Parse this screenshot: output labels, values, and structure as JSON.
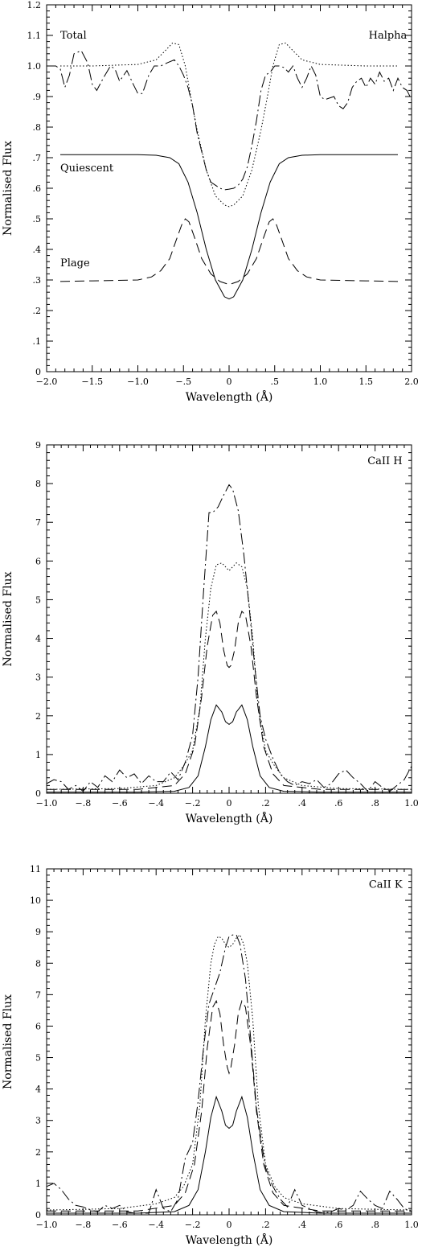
{
  "chart_data": [
    {
      "id": "halpha",
      "type": "line",
      "xlabel": "Wavelength (Å)",
      "ylabel": "Normalised Flux",
      "xlim": [
        -2.0,
        2.0
      ],
      "ylim": [
        0,
        1.2
      ],
      "xticks": [
        -2.0,
        -1.5,
        -1.0,
        -0.5,
        0,
        0.5,
        1.0,
        1.5,
        2.0
      ],
      "xtick_labels": [
        "−2.0",
        "−1.5",
        "−1.0",
        "−.5",
        "0",
        ".5",
        "1.0",
        "1.5",
        "2.0"
      ],
      "yticks": [
        0,
        0.1,
        0.2,
        0.3,
        0.4,
        0.5,
        0.6,
        0.7,
        0.8,
        0.9,
        1.0,
        1.1,
        1.2
      ],
      "ytick_labels": [
        "0",
        ".1",
        ".2",
        ".3",
        ".4",
        ".5",
        ".6",
        ".7",
        ".8",
        ".9",
        "1.0",
        "1.1",
        "1.2"
      ],
      "annotations": [
        {
          "text": "Total",
          "x": -1.85,
          "y": 1.09
        },
        {
          "text": "Halpha",
          "x": 1.95,
          "y": 1.09,
          "anchor": "end"
        },
        {
          "text": "Quiescent",
          "x": -1.85,
          "y": 0.655
        },
        {
          "text": "Plage",
          "x": -1.85,
          "y": 0.345
        }
      ],
      "series": [
        {
          "style": "solid",
          "x": [
            -1.85,
            -1.0,
            -0.8,
            -0.65,
            -0.55,
            -0.45,
            -0.35,
            -0.25,
            -0.15,
            -0.05,
            0,
            0.05,
            0.15,
            0.25,
            0.35,
            0.45,
            0.55,
            0.65,
            0.8,
            1.0,
            1.85
          ],
          "y": [
            0.71,
            0.71,
            0.708,
            0.7,
            0.68,
            0.62,
            0.52,
            0.4,
            0.3,
            0.245,
            0.238,
            0.245,
            0.3,
            0.4,
            0.52,
            0.62,
            0.68,
            0.7,
            0.708,
            0.71,
            0.71
          ]
        },
        {
          "style": "dashed",
          "x": [
            -1.85,
            -1.5,
            -1.0,
            -0.85,
            -0.75,
            -0.65,
            -0.58,
            -0.52,
            -0.48,
            -0.44,
            -0.38,
            -0.3,
            -0.2,
            -0.1,
            0,
            0.1,
            0.2,
            0.3,
            0.38,
            0.44,
            0.48,
            0.52,
            0.58,
            0.65,
            0.75,
            0.85,
            1.0,
            1.5,
            1.85
          ],
          "y": [
            0.295,
            0.297,
            0.3,
            0.31,
            0.33,
            0.37,
            0.43,
            0.48,
            0.5,
            0.49,
            0.44,
            0.37,
            0.32,
            0.295,
            0.285,
            0.295,
            0.32,
            0.37,
            0.44,
            0.49,
            0.5,
            0.48,
            0.43,
            0.37,
            0.33,
            0.31,
            0.3,
            0.297,
            0.295
          ]
        },
        {
          "style": "dotted",
          "x": [
            -1.85,
            -1.5,
            -1.0,
            -0.8,
            -0.7,
            -0.62,
            -0.55,
            -0.48,
            -0.42,
            -0.35,
            -0.25,
            -0.15,
            -0.05,
            0,
            0.05,
            0.15,
            0.25,
            0.35,
            0.42,
            0.48,
            0.55,
            0.62,
            0.7,
            0.8,
            1.0,
            1.5,
            1.85
          ],
          "y": [
            1.0,
            1.0,
            1.005,
            1.02,
            1.05,
            1.075,
            1.07,
            1.0,
            0.9,
            0.79,
            0.66,
            0.575,
            0.545,
            0.54,
            0.545,
            0.575,
            0.66,
            0.79,
            0.9,
            1.0,
            1.07,
            1.075,
            1.05,
            1.02,
            1.005,
            1.0,
            1.0
          ]
        },
        {
          "style": "dashdot",
          "x": [
            -2.0,
            -1.9,
            -1.85,
            -1.8,
            -1.75,
            -1.7,
            -1.62,
            -1.55,
            -1.5,
            -1.45,
            -1.38,
            -1.3,
            -1.25,
            -1.2,
            -1.12,
            -1.05,
            -1.0,
            -0.95,
            -0.88,
            -0.82,
            -0.75,
            -0.68,
            -0.6,
            -0.55,
            -0.5,
            -0.45,
            -0.4,
            -0.35,
            -0.3,
            -0.25,
            -0.2,
            -0.15,
            -0.1,
            -0.05,
            0,
            0.05,
            0.1,
            0.15,
            0.2,
            0.25,
            0.3,
            0.35,
            0.4,
            0.45,
            0.5,
            0.55,
            0.6,
            0.65,
            0.7,
            0.75,
            0.8,
            0.85,
            0.9,
            0.95,
            1.0,
            1.05,
            1.1,
            1.15,
            1.2,
            1.25,
            1.3,
            1.35,
            1.4,
            1.45,
            1.5,
            1.55,
            1.6,
            1.65,
            1.7,
            1.75,
            1.8,
            1.85,
            1.9,
            1.95,
            2.0
          ],
          "y": [
            1.0,
            1.0,
            0.99,
            0.93,
            0.97,
            1.04,
            1.05,
            1.01,
            0.94,
            0.92,
            0.96,
            1.0,
            0.99,
            0.95,
            0.985,
            0.94,
            0.91,
            0.91,
            0.97,
            1.0,
            1.0,
            1.01,
            1.02,
            1.0,
            0.97,
            0.93,
            0.87,
            0.78,
            0.72,
            0.66,
            0.62,
            0.61,
            0.6,
            0.595,
            0.597,
            0.6,
            0.61,
            0.63,
            0.67,
            0.74,
            0.82,
            0.92,
            0.97,
            0.98,
            1.0,
            1.0,
            0.995,
            0.98,
            1.0,
            0.96,
            0.93,
            0.96,
            1.0,
            0.97,
            0.9,
            0.89,
            0.895,
            0.9,
            0.87,
            0.86,
            0.88,
            0.93,
            0.95,
            0.96,
            0.93,
            0.96,
            0.94,
            0.98,
            0.95,
            0.96,
            0.92,
            0.96,
            0.93,
            0.92,
            0.89
          ]
        }
      ]
    },
    {
      "id": "caii-h",
      "type": "line",
      "xlabel": "Wavelength (Å)",
      "ylabel": "Normalised Flux",
      "xlim": [
        -1.0,
        1.0
      ],
      "ylim": [
        0,
        9
      ],
      "xticks": [
        -1.0,
        -0.8,
        -0.6,
        -0.4,
        -0.2,
        0,
        0.2,
        0.4,
        0.6,
        0.8,
        1.0
      ],
      "xtick_labels": [
        "−1.0",
        "−.8",
        "−.6",
        "−.4",
        "−.2",
        "0",
        ".2",
        ".4",
        ".6",
        ".8",
        "1.0"
      ],
      "yticks": [
        0,
        1,
        2,
        3,
        4,
        5,
        6,
        7,
        8,
        9
      ],
      "ytick_labels": [
        "0",
        "1",
        "2",
        "3",
        "4",
        "5",
        "6",
        "7",
        "8",
        "9"
      ],
      "annotations": [
        {
          "text": "CaII H",
          "x": 0.95,
          "y": 8.5,
          "anchor": "end"
        }
      ],
      "series": [
        {
          "style": "solid",
          "x": [
            -1.0,
            -0.5,
            -0.3,
            -0.22,
            -0.17,
            -0.13,
            -0.1,
            -0.07,
            -0.04,
            -0.02,
            0,
            0.02,
            0.04,
            0.07,
            0.1,
            0.13,
            0.17,
            0.22,
            0.3,
            0.5,
            1.0
          ],
          "y": [
            0.03,
            0.03,
            0.05,
            0.15,
            0.45,
            1.2,
            1.9,
            2.28,
            2.1,
            1.85,
            1.78,
            1.85,
            2.1,
            2.28,
            1.9,
            1.2,
            0.45,
            0.15,
            0.05,
            0.03,
            0.03
          ]
        },
        {
          "style": "dashed",
          "x": [
            -1.0,
            -0.5,
            -0.3,
            -0.24,
            -0.19,
            -0.15,
            -0.12,
            -0.09,
            -0.07,
            -0.05,
            -0.03,
            -0.01,
            0,
            0.01,
            0.03,
            0.05,
            0.07,
            0.09,
            0.12,
            0.15,
            0.19,
            0.24,
            0.3,
            0.5,
            1.0
          ],
          "y": [
            0.1,
            0.1,
            0.2,
            0.5,
            1.2,
            2.5,
            3.8,
            4.6,
            4.7,
            4.4,
            3.7,
            3.3,
            3.25,
            3.3,
            3.7,
            4.4,
            4.7,
            4.6,
            3.8,
            2.5,
            1.2,
            0.5,
            0.2,
            0.1,
            0.1
          ]
        },
        {
          "style": "dotted",
          "x": [
            -1.0,
            -0.6,
            -0.4,
            -0.3,
            -0.25,
            -0.2,
            -0.16,
            -0.13,
            -0.1,
            -0.07,
            -0.04,
            -0.02,
            0,
            0.02,
            0.04,
            0.07,
            0.1,
            0.13,
            0.16,
            0.2,
            0.25,
            0.3,
            0.4,
            0.6,
            1.0
          ],
          "y": [
            0.1,
            0.12,
            0.2,
            0.4,
            0.7,
            1.1,
            2.2,
            4.0,
            5.3,
            5.9,
            5.95,
            5.85,
            5.75,
            5.85,
            5.95,
            5.85,
            5.3,
            4.0,
            2.2,
            1.1,
            0.7,
            0.4,
            0.2,
            0.12,
            0.1
          ]
        },
        {
          "style": "dashdot",
          "x": [
            -1.0,
            -0.96,
            -0.92,
            -0.88,
            -0.84,
            -0.8,
            -0.76,
            -0.72,
            -0.68,
            -0.64,
            -0.6,
            -0.56,
            -0.52,
            -0.48,
            -0.44,
            -0.4,
            -0.36,
            -0.32,
            -0.28,
            -0.24,
            -0.2,
            -0.17,
            -0.14,
            -0.11,
            -0.09,
            -0.06,
            -0.03,
            0,
            0.02,
            0.05,
            0.08,
            0.11,
            0.14,
            0.17,
            0.2,
            0.24,
            0.28,
            0.32,
            0.36,
            0.4,
            0.44,
            0.48,
            0.52,
            0.56,
            0.6,
            0.64,
            0.68,
            0.72,
            0.76,
            0.8,
            0.84,
            0.88,
            0.92,
            0.96,
            1.0
          ],
          "y": [
            0.25,
            0.35,
            0.3,
            0.1,
            0.2,
            0.05,
            0.3,
            0.15,
            0.45,
            0.3,
            0.6,
            0.4,
            0.5,
            0.25,
            0.45,
            0.3,
            0.3,
            0.55,
            0.35,
            0.8,
            1.5,
            3.0,
            5.2,
            7.25,
            7.25,
            7.4,
            7.7,
            7.97,
            7.85,
            7.3,
            6.2,
            4.8,
            3.3,
            2.0,
            1.4,
            0.9,
            0.5,
            0.3,
            0.2,
            0.3,
            0.25,
            0.35,
            0.15,
            0.25,
            0.5,
            0.6,
            0.4,
            0.25,
            0.05,
            0.3,
            0.15,
            0.05,
            0.2,
            0.35,
            0.7
          ]
        }
      ]
    },
    {
      "id": "caii-k",
      "type": "line",
      "xlabel": "Wavelength (Å)",
      "ylabel": "Normalised Flux",
      "xlim": [
        -1.0,
        1.0
      ],
      "ylim": [
        0,
        11
      ],
      "xticks": [
        -1.0,
        -0.8,
        -0.6,
        -0.4,
        -0.2,
        0,
        0.2,
        0.4,
        0.6,
        0.8,
        1.0
      ],
      "xtick_labels": [
        "−1.0",
        "−.8",
        "−.6",
        "−.4",
        "−.2",
        "0",
        ".2",
        ".4",
        ".6",
        ".8",
        "1.0"
      ],
      "yticks": [
        0,
        1,
        2,
        3,
        4,
        5,
        6,
        7,
        8,
        9,
        10,
        11
      ],
      "ytick_labels": [
        "0",
        "1",
        "2",
        "3",
        "4",
        "5",
        "6",
        "7",
        "8",
        "9",
        "10",
        "11"
      ],
      "annotations": [
        {
          "text": "CaII K",
          "x": 0.95,
          "y": 10.4,
          "anchor": "end"
        }
      ],
      "series": [
        {
          "style": "solid",
          "x": [
            -1.0,
            -0.5,
            -0.3,
            -0.22,
            -0.17,
            -0.13,
            -0.1,
            -0.07,
            -0.04,
            -0.02,
            0,
            0.02,
            0.04,
            0.07,
            0.1,
            0.13,
            0.17,
            0.22,
            0.3,
            0.5,
            1.0
          ],
          "y": [
            0.05,
            0.05,
            0.1,
            0.3,
            0.8,
            2.0,
            3.1,
            3.75,
            3.3,
            2.85,
            2.75,
            2.85,
            3.3,
            3.75,
            3.1,
            2.0,
            0.8,
            0.3,
            0.1,
            0.05,
            0.05
          ]
        },
        {
          "style": "dashed",
          "x": [
            -1.0,
            -0.5,
            -0.3,
            -0.24,
            -0.19,
            -0.15,
            -0.12,
            -0.09,
            -0.07,
            -0.05,
            -0.03,
            -0.01,
            0,
            0.01,
            0.03,
            0.05,
            0.07,
            0.09,
            0.12,
            0.15,
            0.19,
            0.24,
            0.3,
            0.5,
            1.0
          ],
          "y": [
            0.12,
            0.12,
            0.3,
            0.7,
            1.6,
            3.3,
            5.3,
            6.6,
            6.8,
            6.4,
            5.4,
            4.7,
            4.5,
            4.7,
            5.4,
            6.4,
            6.8,
            6.6,
            5.3,
            3.3,
            1.6,
            0.7,
            0.3,
            0.12,
            0.12
          ]
        },
        {
          "style": "dotted",
          "x": [
            -1.0,
            -0.6,
            -0.4,
            -0.3,
            -0.25,
            -0.2,
            -0.16,
            -0.13,
            -0.1,
            -0.08,
            -0.06,
            -0.04,
            -0.02,
            0,
            0.02,
            0.04,
            0.06,
            0.08,
            0.1,
            0.13,
            0.16,
            0.2,
            0.25,
            0.3,
            0.4,
            0.6,
            1.0
          ],
          "y": [
            0.15,
            0.2,
            0.35,
            0.55,
            0.9,
            1.6,
            3.5,
            6.2,
            8.0,
            8.6,
            8.85,
            8.8,
            8.6,
            8.5,
            8.6,
            8.8,
            8.9,
            8.6,
            8.0,
            6.2,
            3.5,
            1.6,
            0.9,
            0.55,
            0.35,
            0.2,
            0.15
          ]
        },
        {
          "style": "dashdot",
          "x": [
            -1.0,
            -0.96,
            -0.92,
            -0.88,
            -0.84,
            -0.8,
            -0.76,
            -0.72,
            -0.68,
            -0.64,
            -0.6,
            -0.56,
            -0.52,
            -0.48,
            -0.44,
            -0.4,
            -0.36,
            -0.32,
            -0.28,
            -0.24,
            -0.2,
            -0.17,
            -0.14,
            -0.11,
            -0.08,
            -0.05,
            -0.02,
            0,
            0.02,
            0.04,
            0.06,
            0.09,
            0.12,
            0.15,
            0.18,
            0.2,
            0.24,
            0.28,
            0.32,
            0.36,
            0.4,
            0.44,
            0.48,
            0.52,
            0.56,
            0.6,
            0.64,
            0.68,
            0.72,
            0.76,
            0.8,
            0.84,
            0.88,
            0.92,
            0.96,
            1.0
          ],
          "y": [
            0.9,
            1.0,
            0.8,
            0.5,
            0.3,
            0.25,
            0.15,
            0.1,
            0.3,
            0.2,
            0.3,
            0.1,
            0.05,
            0.05,
            0.05,
            0.8,
            0.2,
            0.1,
            0.5,
            1.8,
            2.3,
            3.6,
            5.3,
            6.7,
            7.2,
            7.7,
            8.5,
            8.85,
            8.9,
            8.9,
            8.6,
            7.5,
            5.5,
            3.4,
            2.2,
            1.5,
            0.9,
            0.5,
            0.25,
            0.8,
            0.3,
            0.2,
            0.1,
            0.05,
            0.1,
            0.2,
            0.15,
            0.3,
            0.75,
            0.5,
            0.3,
            0.2,
            0.75,
            0.5,
            0.2,
            0.1
          ]
        }
      ]
    }
  ]
}
